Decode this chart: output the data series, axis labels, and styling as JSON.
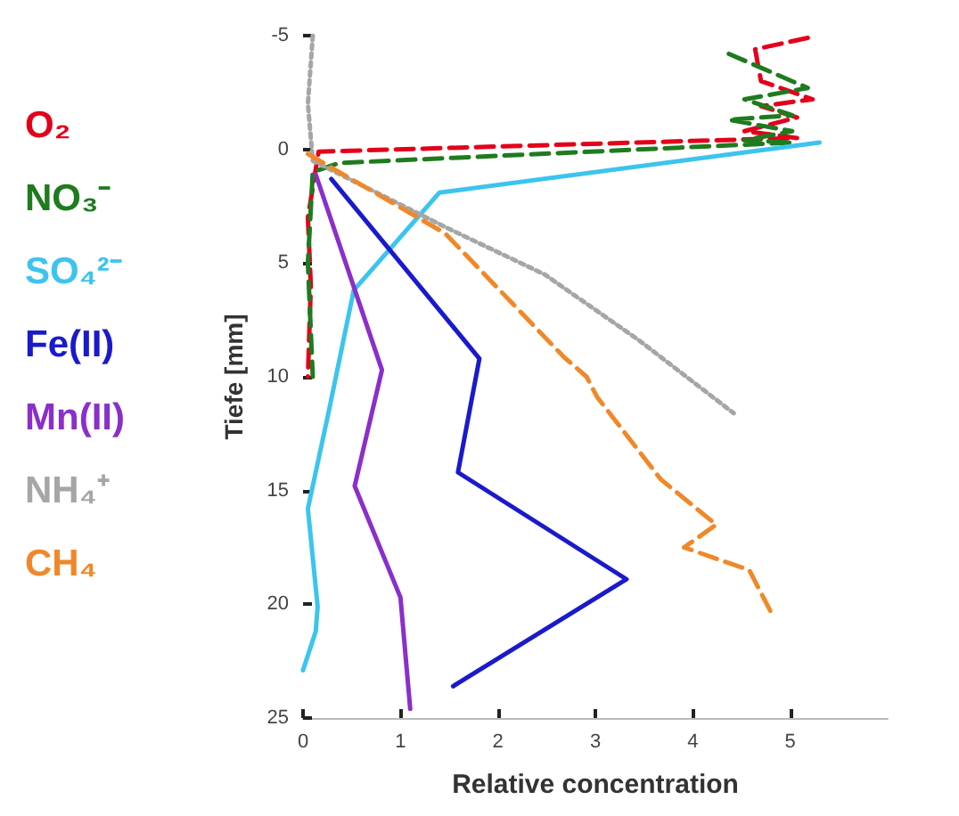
{
  "chart_data": {
    "type": "line",
    "xlabel": "Relative concentration",
    "ylabel": "Tiefe [mm]",
    "xlim": [
      0,
      6
    ],
    "xticks": [
      0,
      1,
      2,
      3,
      4,
      5
    ],
    "ylim": [
      25,
      -5
    ],
    "yticks": [
      -5,
      0,
      5,
      10,
      15,
      20,
      25
    ],
    "grid": false,
    "legend": "left",
    "marker": "none",
    "series": [
      {
        "name": "O₂",
        "color": "#e3001b",
        "line_style": "dashed",
        "x": [
          5.18,
          4.64,
          4.7,
          5.23,
          4.7,
          5.07,
          4.53,
          5.07,
          0.16,
          0.05,
          0.08,
          0.05
        ],
        "values": [
          -4.9,
          -4.4,
          -3.0,
          -2.2,
          -1.9,
          -1.4,
          -0.8,
          -0.5,
          0.1,
          3,
          6,
          10
        ]
      },
      {
        "name": "NO₃⁻",
        "color": "#1e7b1e",
        "line_style": "dashed",
        "x": [
          4.37,
          5.18,
          4.53,
          5.02,
          4.37,
          5.02,
          4.53,
          5.02,
          0.37,
          0.1,
          0.05,
          0.1
        ],
        "values": [
          -4.2,
          -2.7,
          -2.2,
          -1.5,
          -1.3,
          -0.8,
          -0.4,
          -0.3,
          0.6,
          1,
          5,
          10
        ]
      },
      {
        "name": "SO₄²⁻",
        "color": "#3cc4ef",
        "line_style": "solid",
        "x": [
          5.3,
          1.4,
          0.52,
          0.27,
          0.05,
          0.15,
          0.13,
          0
        ],
        "values": [
          -0.3,
          1.9,
          6.2,
          11.4,
          15.8,
          20.1,
          21.2,
          22.9
        ]
      },
      {
        "name": "Fe(II)",
        "color": "#1a1acc",
        "line_style": "solid",
        "x": [
          0.29,
          1.81,
          1.59,
          3.32,
          1.54
        ],
        "values": [
          1.3,
          9.2,
          14.2,
          18.9,
          23.6
        ]
      },
      {
        "name": "Mn(II)",
        "color": "#8b2fc9",
        "line_style": "solid",
        "x": [
          0.13,
          0.81,
          0.53,
          1.0,
          1.1
        ],
        "values": [
          1.1,
          9.7,
          14.8,
          19.7,
          24.6
        ]
      },
      {
        "name": "NH₄⁺",
        "color": "#a6a6a6",
        "line_style": "dotted",
        "x": [
          0.1,
          0.05,
          0.1,
          1.5,
          2.48,
          3.45,
          4.42
        ],
        "values": [
          -5,
          -2,
          0.5,
          3.5,
          5.5,
          8.4,
          11.6
        ]
      },
      {
        "name": "CH₄",
        "color": "#f0882a",
        "line_style": "dashed",
        "x": [
          0.05,
          1.46,
          2.67,
          2.91,
          3.02,
          3.67,
          4.24,
          3.91,
          4.58,
          4.82
        ],
        "values": [
          0.2,
          3.7,
          9.1,
          10,
          10.9,
          14.5,
          16.5,
          17.5,
          18.5,
          20.5
        ]
      }
    ]
  }
}
